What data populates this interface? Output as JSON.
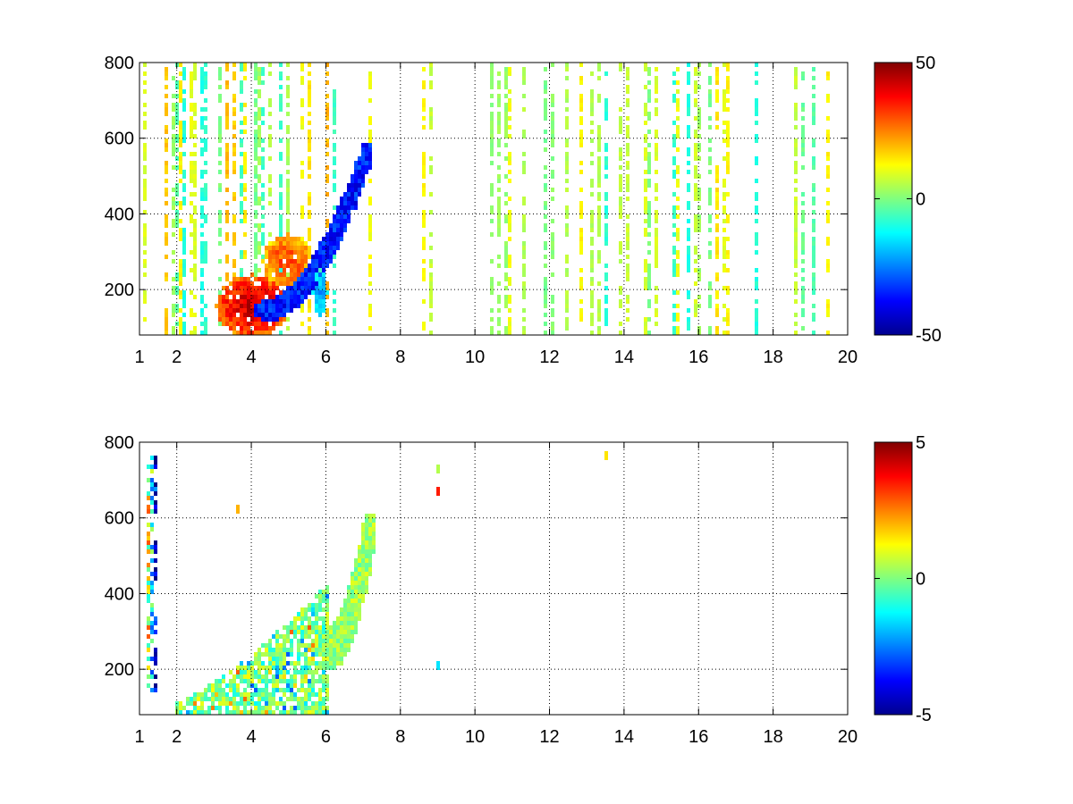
{
  "chart_data": [
    {
      "type": "heatmap",
      "xlim": [
        1,
        20
      ],
      "ylim": [
        80,
        800
      ],
      "x_ticks": [
        1,
        2,
        4,
        6,
        8,
        10,
        12,
        14,
        16,
        18,
        20
      ],
      "y_ticks": [
        200,
        400,
        600,
        800
      ],
      "grid": true,
      "colorbar": {
        "min": -50,
        "max": 50,
        "ticks": [
          -50,
          0,
          50
        ],
        "colormap": "jet"
      },
      "features": [
        {
          "kind": "vertical-streaks",
          "x_range": [
            1.0,
            6.0
          ],
          "y_range": [
            80,
            800
          ],
          "value_range": [
            -10,
            20
          ],
          "density": 0.45
        },
        {
          "kind": "vertical-streaks",
          "x_range": [
            6.0,
            20.0
          ],
          "y_range": [
            80,
            800
          ],
          "value_range": [
            -10,
            15
          ],
          "density": 0.22
        },
        {
          "kind": "blob",
          "center": [
            4.0,
            160
          ],
          "spread": [
            1.0,
            80
          ],
          "value": 42
        },
        {
          "kind": "blob",
          "center": [
            5.0,
            280
          ],
          "spread": [
            0.7,
            70
          ],
          "value": 30
        },
        {
          "kind": "band",
          "from": [
            4.2,
            140
          ],
          "to": [
            7.1,
            560
          ],
          "width_y": 40,
          "value": -35
        },
        {
          "kind": "blob",
          "center": [
            5.8,
            190
          ],
          "spread": [
            0.2,
            60
          ],
          "value": -20
        }
      ]
    },
    {
      "type": "heatmap",
      "xlim": [
        1,
        20
      ],
      "ylim": [
        80,
        800
      ],
      "x_ticks": [
        1,
        2,
        4,
        6,
        8,
        10,
        12,
        14,
        16,
        18,
        20
      ],
      "y_ticks": [
        200,
        400,
        600,
        800
      ],
      "grid": true,
      "colorbar": {
        "min": -5,
        "max": 5,
        "ticks": [
          -5,
          0,
          5
        ],
        "colormap": "jet"
      },
      "features": [
        {
          "kind": "wedge",
          "x_range": [
            2.0,
            6.0
          ],
          "y_min": 80,
          "y_top_start": 110,
          "y_top_end": 420,
          "value_range": [
            -3,
            3
          ],
          "density": 0.8
        },
        {
          "kind": "band",
          "from": [
            6.0,
            250
          ],
          "to": [
            7.2,
            570
          ],
          "width_y": 80,
          "value": 0.3
        },
        {
          "kind": "vertical-streaks",
          "x_range": [
            1.1,
            1.5
          ],
          "y_range": [
            150,
            760
          ],
          "value_range": [
            -5,
            5
          ],
          "density": 0.5
        },
        {
          "kind": "spot",
          "center": [
            9.0,
            660
          ],
          "value": 3.5
        },
        {
          "kind": "spot",
          "center": [
            9.0,
            720
          ],
          "value": 0.5
        },
        {
          "kind": "spot",
          "center": [
            9.0,
            200
          ],
          "value": -1.5
        },
        {
          "kind": "spot",
          "center": [
            13.5,
            755
          ],
          "value": 1.5
        },
        {
          "kind": "spot",
          "center": [
            3.6,
            620
          ],
          "value": 2.0
        }
      ]
    }
  ]
}
